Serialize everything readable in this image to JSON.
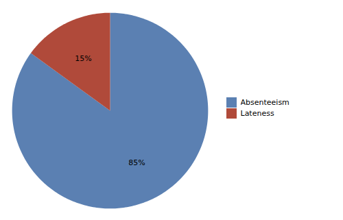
{
  "chart_data": {
    "type": "pie",
    "categories": [
      "Absenteeism",
      "Lateness"
    ],
    "values": [
      85,
      15
    ],
    "value_labels": [
      "85%",
      "15%"
    ],
    "colors": [
      "#5b80b2",
      "#b04a3a"
    ],
    "data_labels": true,
    "legend": "right"
  }
}
